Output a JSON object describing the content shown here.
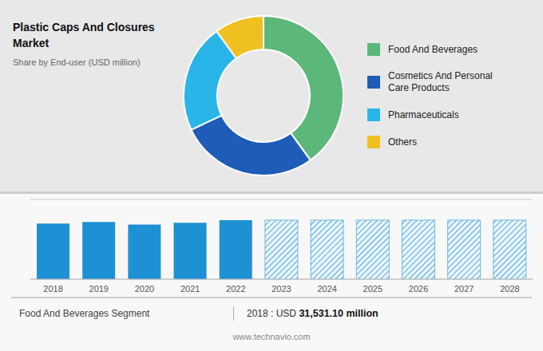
{
  "chart_data": [
    {
      "type": "pie",
      "title": "Plastic Caps And Closures\nMarket",
      "subtitle": "Share by End-user (USD million)",
      "categories": [
        "Food And Beverages",
        "Cosmetics And Personal\nCare Products",
        "Pharmaceuticals",
        "Others"
      ],
      "values": [
        40,
        28,
        22,
        10
      ],
      "colors": [
        "#5cb87a",
        "#1e5cb8",
        "#29b5e8",
        "#f0c020"
      ],
      "legend": "right"
    },
    {
      "type": "bar",
      "categories": [
        2018,
        2019,
        2020,
        2021,
        2022,
        2023,
        2024,
        2025,
        2026,
        2027,
        2028
      ],
      "values": [
        31531,
        32500,
        31000,
        32000,
        33500,
        33500,
        33500,
        33500,
        33500,
        33500,
        33500
      ],
      "colors": [
        "#1e90d4",
        "#1e90d4",
        "#1e90d4",
        "#1e90d4",
        "#1e90d4",
        "#e8f4fc",
        "#e8f4fc",
        "#e8f4fc",
        "#e8f4fc",
        "#e8f4fc",
        "#e8f4fc"
      ],
      "color": "#1e90d4",
      "ylim": [
        0,
        45225
      ],
      "yticks": [
        0,
        11306.25,
        22612.5,
        33918.75,
        45225
      ],
      "grid": true,
      "tick_labels": "x",
      "annotations": [
        "Food And Beverages Segment",
        "2018 : USD ",
        "31,531.10 million",
        "www.technavio.com"
      ]
    }
  ]
}
